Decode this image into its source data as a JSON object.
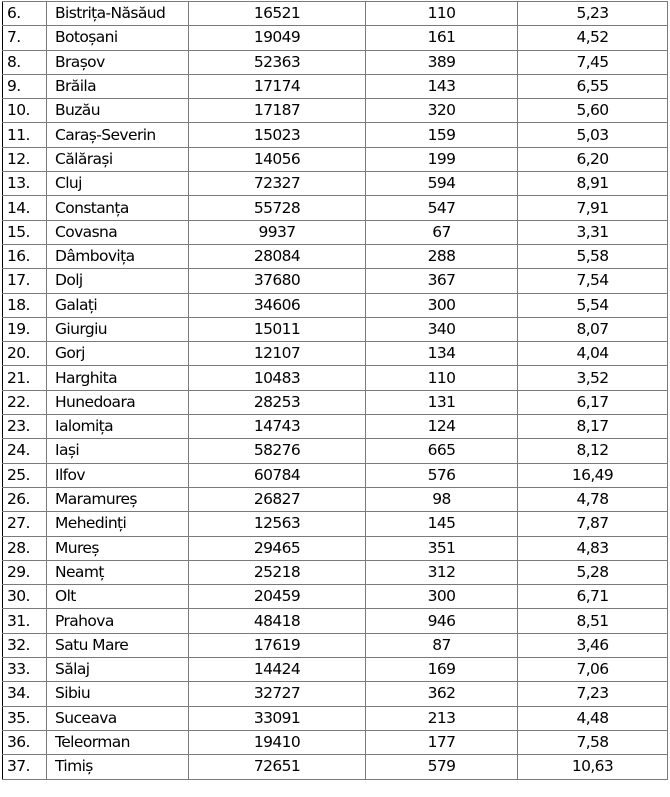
{
  "table": {
    "rows": [
      {
        "no": "6.",
        "county": "Bistrița-Năsăud",
        "value1": "16521",
        "value2": "110",
        "value3": "5,23"
      },
      {
        "no": "7.",
        "county": "Botoșani",
        "value1": "19049",
        "value2": "161",
        "value3": "4,52"
      },
      {
        "no": "8.",
        "county": "Brașov",
        "value1": "52363",
        "value2": "389",
        "value3": "7,45"
      },
      {
        "no": "9.",
        "county": "Brăila",
        "value1": "17174",
        "value2": "143",
        "value3": "6,55"
      },
      {
        "no": "10.",
        "county": "Buzău",
        "value1": "17187",
        "value2": "320",
        "value3": "5,60"
      },
      {
        "no": "11.",
        "county": "Caraș-Severin",
        "value1": "15023",
        "value2": "159",
        "value3": "5,03"
      },
      {
        "no": "12.",
        "county": "Călărași",
        "value1": "14056",
        "value2": "199",
        "value3": "6,20"
      },
      {
        "no": "13.",
        "county": "Cluj",
        "value1": "72327",
        "value2": "594",
        "value3": "8,91"
      },
      {
        "no": "14.",
        "county": "Constanța",
        "value1": "55728",
        "value2": "547",
        "value3": "7,91"
      },
      {
        "no": "15.",
        "county": "Covasna",
        "value1": "9937",
        "value2": "67",
        "value3": "3,31"
      },
      {
        "no": "16.",
        "county": "Dâmbovița",
        "value1": "28084",
        "value2": "288",
        "value3": "5,58"
      },
      {
        "no": "17.",
        "county": "Dolj",
        "value1": "37680",
        "value2": "367",
        "value3": "7,54"
      },
      {
        "no": "18.",
        "county": "Galați",
        "value1": "34606",
        "value2": "300",
        "value3": "5,54"
      },
      {
        "no": "19.",
        "county": "Giurgiu",
        "value1": "15011",
        "value2": "340",
        "value3": "8,07"
      },
      {
        "no": "20.",
        "county": "Gorj",
        "value1": "12107",
        "value2": "134",
        "value3": "4,04"
      },
      {
        "no": "21.",
        "county": "Harghita",
        "value1": "10483",
        "value2": "110",
        "value3": "3,52"
      },
      {
        "no": "22.",
        "county": "Hunedoara",
        "value1": "28253",
        "value2": "131",
        "value3": "6,17"
      },
      {
        "no": "23.",
        "county": "Ialomița",
        "value1": "14743",
        "value2": "124",
        "value3": "8,17"
      },
      {
        "no": "24.",
        "county": "Iași",
        "value1": "58276",
        "value2": "665",
        "value3": "8,12"
      },
      {
        "no": "25.",
        "county": "Ilfov",
        "value1": "60784",
        "value2": "576",
        "value3": "16,49"
      },
      {
        "no": "26.",
        "county": "Maramureș",
        "value1": "26827",
        "value2": "98",
        "value3": "4,78"
      },
      {
        "no": "27.",
        "county": "Mehedinți",
        "value1": "12563",
        "value2": "145",
        "value3": "7,87"
      },
      {
        "no": "28.",
        "county": "Mureș",
        "value1": "29465",
        "value2": "351",
        "value3": "4,83"
      },
      {
        "no": "29.",
        "county": "Neamț",
        "value1": "25218",
        "value2": "312",
        "value3": "5,28"
      },
      {
        "no": "30.",
        "county": "Olt",
        "value1": "20459",
        "value2": "300",
        "value3": "6,71"
      },
      {
        "no": "31.",
        "county": "Prahova",
        "value1": "48418",
        "value2": "946",
        "value3": "8,51"
      },
      {
        "no": "32.",
        "county": "Satu Mare",
        "value1": "17619",
        "value2": "87",
        "value3": "3,46"
      },
      {
        "no": "33.",
        "county": "Sălaj",
        "value1": "14424",
        "value2": "169",
        "value3": "7,06"
      },
      {
        "no": "34.",
        "county": "Sibiu",
        "value1": "32727",
        "value2": "362",
        "value3": "7,23"
      },
      {
        "no": "35.",
        "county": "Suceava",
        "value1": "33091",
        "value2": "213",
        "value3": "4,48"
      },
      {
        "no": "36.",
        "county": "Teleorman",
        "value1": "19410",
        "value2": "177",
        "value3": "7,58"
      },
      {
        "no": "37.",
        "county": "Timiș",
        "value1": "72651",
        "value2": "579",
        "value3": "10,63"
      }
    ]
  }
}
